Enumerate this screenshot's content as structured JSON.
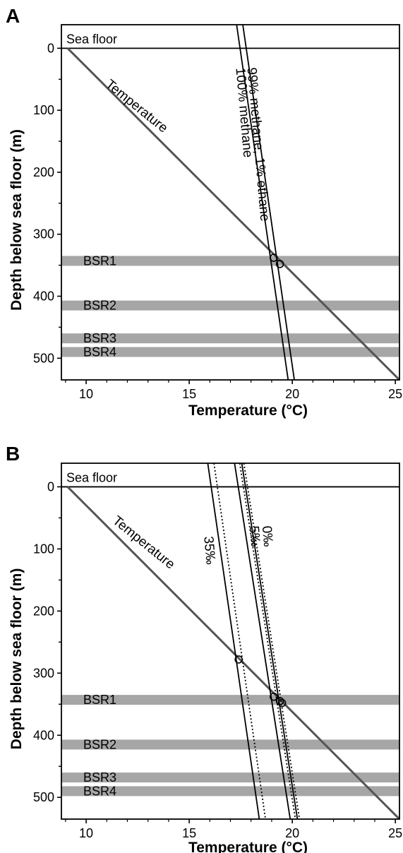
{
  "chart_data": [
    {
      "panel": "A",
      "type": "line",
      "xlabel": "Temperature (°C)",
      "ylabel": "Depth below sea floor (m)",
      "xlim": [
        8.8,
        25.2
      ],
      "ylim": [
        -38,
        535
      ],
      "y_inverted": true,
      "xticks": [
        10,
        15,
        20,
        25
      ],
      "yticks": [
        0,
        100,
        200,
        300,
        400,
        500
      ],
      "sea_floor_label": "Sea floor",
      "sea_floor_depth": 0,
      "bsr_bands": [
        {
          "name": "BSR1",
          "depth": 343
        },
        {
          "name": "BSR2",
          "depth": 415
        },
        {
          "name": "BSR3",
          "depth": 468
        },
        {
          "name": "BSR4",
          "depth": 490
        }
      ],
      "series": [
        {
          "label": "Temperature",
          "points": [
            [
              9.1,
              0
            ],
            [
              25.2,
              535
            ]
          ],
          "color": "#555555"
        },
        {
          "label": "100% methane",
          "points": [
            [
              17.3,
              -38
            ],
            [
              19.8,
              535
            ]
          ],
          "color": "#000000"
        },
        {
          "label": "99% methane, 1% ethane",
          "points": [
            [
              17.6,
              -38
            ],
            [
              20.1,
              535
            ]
          ],
          "color": "#000000"
        }
      ],
      "intersections": [
        [
          19.1,
          338
        ],
        [
          19.4,
          348
        ]
      ]
    },
    {
      "panel": "B",
      "type": "line",
      "xlabel": "Temperature (°C)",
      "ylabel": "Depth below sea floor (m)",
      "xlim": [
        8.8,
        25.2
      ],
      "ylim": [
        -38,
        535
      ],
      "y_inverted": true,
      "xticks": [
        10,
        15,
        20,
        25
      ],
      "yticks": [
        0,
        100,
        200,
        300,
        400,
        500
      ],
      "sea_floor_label": "Sea floor",
      "sea_floor_depth": 0,
      "bsr_bands": [
        {
          "name": "BSR1",
          "depth": 343
        },
        {
          "name": "BSR2",
          "depth": 415
        },
        {
          "name": "BSR3",
          "depth": 468
        },
        {
          "name": "BSR4",
          "depth": 490
        }
      ],
      "series": [
        {
          "label": "Temperature",
          "points": [
            [
              9.1,
              0
            ],
            [
              25.2,
              535
            ]
          ],
          "color": "#555555"
        },
        {
          "label": "35‰",
          "points": [
            [
              15.9,
              -38
            ],
            [
              18.4,
              535
            ]
          ],
          "color": "#000000"
        },
        {
          "label": "",
          "points": [
            [
              16.2,
              -38
            ],
            [
              18.7,
              535
            ]
          ],
          "color": "#000000",
          "dashed": true
        },
        {
          "label": "5‰",
          "points": [
            [
              17.2,
              -38
            ],
            [
              19.9,
              535
            ]
          ],
          "color": "#000000"
        },
        {
          "label": "",
          "points": [
            [
              17.45,
              -38
            ],
            [
              20.15,
              535
            ]
          ],
          "color": "#000000",
          "dashed": true
        },
        {
          "label": "0‰",
          "points": [
            [
              17.55,
              -38
            ],
            [
              20.25,
              535
            ]
          ],
          "color": "#000000"
        },
        {
          "label": "",
          "points": [
            [
              17.65,
              -38
            ],
            [
              20.35,
              535
            ]
          ],
          "color": "#000000",
          "dashed": true
        }
      ],
      "intersections": [
        [
          17.4,
          278
        ],
        [
          19.1,
          338
        ],
        [
          19.4,
          345
        ],
        [
          19.5,
          348
        ]
      ]
    }
  ]
}
